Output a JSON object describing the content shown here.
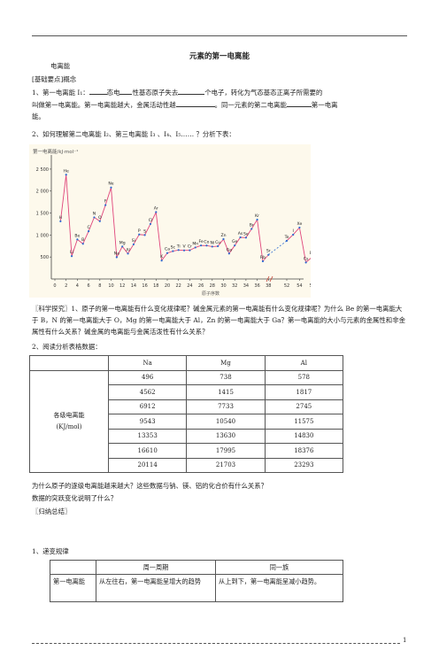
{
  "title": "元素的第一电离能",
  "section_heading": "电离能",
  "basic_points": "[基础要点]概念",
  "item1": {
    "prefix": "1、第一电离能 I₁：",
    "p1": "态电",
    "p2": "性基态原子失去",
    "p3": "个电子，转化为气态基态正离子所需要的",
    "line2a": "叫做第一电离能。第一电离能越大，金属活动性越",
    "line2b": "。同一元素的第二电离能",
    "line2c": "第一电离",
    "line3": "能。"
  },
  "item2": "2、如何理解第二电离能 I₂、第三电离能 I₃ 、I₄、I₅…… ？分析下表：",
  "chart_data": {
    "type": "line",
    "ylabel": "第一电离能/kJ·mol⁻¹",
    "xlabel": "原子序数",
    "yticks": [
      "500",
      "1 000",
      "1 500",
      "2 000",
      "2 500"
    ],
    "xticks": [
      "0",
      "2",
      "4",
      "6",
      "8",
      "10",
      "12",
      "14",
      "16",
      "18",
      "20",
      "22",
      "24",
      "26",
      "28",
      "30",
      "32",
      "34",
      "36",
      "38",
      "52",
      "54",
      "56"
    ],
    "series": [
      {
        "elements": [
          "H",
          "He",
          "Li",
          "Be",
          "B",
          "C",
          "N",
          "O",
          "F",
          "Ne",
          "Na",
          "Mg",
          "Al",
          "Si",
          "P",
          "S",
          "Cl",
          "Ar",
          "K",
          "Ca",
          "Sc",
          "Ti",
          "V",
          "Cr",
          "Mn",
          "Fe",
          "Co",
          "Ni",
          "Cu",
          "Zn",
          "Ga",
          "Ge",
          "As",
          "Se",
          "Br",
          "Kr",
          "Rb"
        ],
        "values": [
          1312,
          2372,
          520,
          900,
          801,
          1086,
          1402,
          1314,
          1681,
          2081,
          496,
          738,
          578,
          787,
          1012,
          1000,
          1251,
          1521,
          419,
          590,
          633,
          659,
          651,
          653,
          717,
          762,
          760,
          737,
          745,
          906,
          579,
          762,
          947,
          941,
          1140,
          1351,
          403
        ]
      },
      {
        "elements": [
          "Sr",
          "Te",
          "I",
          "Xe",
          "Cs",
          "Ba"
        ],
        "values": [
          550,
          869,
          1008,
          1170,
          376,
          503
        ]
      }
    ]
  },
  "explore": "〖科学探究〗1、原子的第一电离能有什么变化规律呢？碱金属元素的第一电离能有什么变化规律呢？为什么 Be 的第一电离能大于 B，N 的第一电离能大于 O，Mg 的第一电离能大于 Al，Zn 的第一电离能大于 Ga？第一电离能的大小与元素的金属性和非金属性有什么关系？碱金属的电离能与金属活泼性有什么关系？",
  "item2b": "2、阅读分析表格数据：",
  "table1": {
    "headers": [
      "Na",
      "Mg",
      "Al"
    ],
    "row_label": "各级电离能",
    "row_unit": "(KJ/mol)",
    "rows": [
      [
        "496",
        "738",
        "578"
      ],
      [
        "4562",
        "1415",
        "1817"
      ],
      [
        "6912",
        "7733",
        "2745"
      ],
      [
        "9543",
        "10540",
        "11575"
      ],
      [
        "13353",
        "13630",
        "14830"
      ],
      [
        "16610",
        "17995",
        "18376"
      ],
      [
        "20114",
        "21703",
        "23293"
      ]
    ]
  },
  "q1": "为什么原子的逐级电离能越来越大？这些数据与钠、镁、铝的化合价有什么关系？",
  "q2": "数据的突跃变化说明了什么？",
  "summary": "〖归纳总结〗",
  "item_rule": "1、递变规律",
  "table2": {
    "headers": [
      "周一周期",
      "同一族"
    ],
    "row_label": "第一电离能",
    "cell1": "从左往右，第一电离能呈增大的趋势",
    "cell2": "从上到下，第一电离能呈减小趋势。"
  },
  "page_number": "1"
}
